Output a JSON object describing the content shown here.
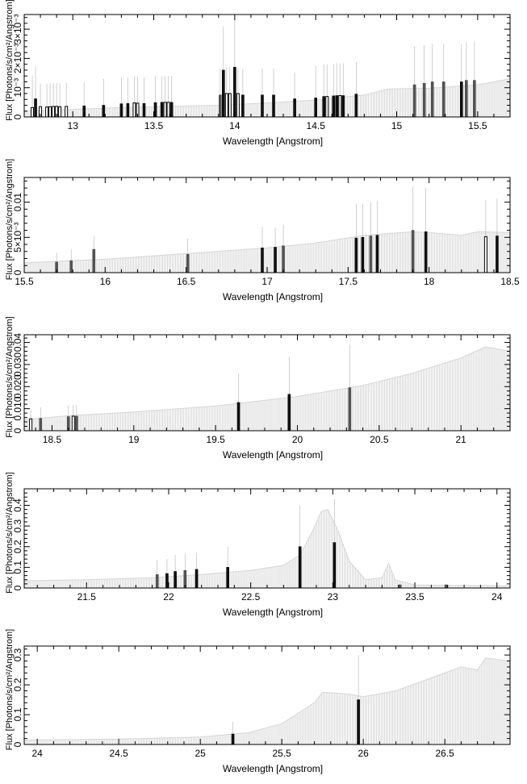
{
  "chart_data": [
    {
      "type": "bar",
      "xlabel": "Wavelength [Angstrom]",
      "ylabel": "Flux [Photons/s/cm²/Angstrom]",
      "xlim": [
        12.7,
        15.7
      ],
      "ylim": [
        0,
        0.0035
      ],
      "xticks": [
        13,
        13.5,
        14,
        14.5,
        15,
        15.5
      ],
      "xticklabels": [
        "13",
        "13.5",
        "14",
        "14.5",
        "15",
        "15.5"
      ],
      "yticks": [
        0,
        0.001,
        0.002,
        0.003
      ],
      "yticklabels": [
        "0",
        "10⁻³",
        "2×10⁻³",
        "3×10⁻³"
      ],
      "model_curve": {
        "x": [
          12.7,
          13.0,
          13.3,
          13.6,
          13.9,
          14.2,
          14.5,
          14.8,
          14.95,
          15.2,
          15.5,
          15.7
        ],
        "y": [
          0.0002,
          0.00026,
          0.00032,
          0.00036,
          0.0004,
          0.00048,
          0.00058,
          0.00075,
          0.00096,
          0.00098,
          0.0011,
          0.0013
        ]
      },
      "bins": [
        {
          "x": 12.75,
          "y": 0.00032,
          "err": 0.0011,
          "style": "open"
        },
        {
          "x": 12.77,
          "y": 0.00062,
          "err": 0.0011,
          "style": "black"
        },
        {
          "x": 12.8,
          "y": 0.00035,
          "err": 0.0008,
          "style": "open"
        },
        {
          "x": 12.84,
          "y": 0.00034,
          "err": 0.0008,
          "style": "open"
        },
        {
          "x": 12.86,
          "y": 0.00035,
          "err": 0.0008,
          "style": "open"
        },
        {
          "x": 12.88,
          "y": 0.00036,
          "err": 0.0008,
          "style": "open"
        },
        {
          "x": 12.9,
          "y": 0.00036,
          "err": 0.0008,
          "style": "open"
        },
        {
          "x": 12.92,
          "y": 0.00035,
          "err": 0.0008,
          "style": "open"
        },
        {
          "x": 12.96,
          "y": 0.00036,
          "err": 0.0008,
          "style": "open"
        },
        {
          "x": 13.07,
          "y": 0.00038,
          "err": 0.0008,
          "style": "black"
        },
        {
          "x": 13.19,
          "y": 0.0004,
          "err": 0.0009,
          "style": "black"
        },
        {
          "x": 13.3,
          "y": 0.00045,
          "err": 0.0009,
          "style": "black"
        },
        {
          "x": 13.34,
          "y": 0.00046,
          "err": 0.0009,
          "style": "black"
        },
        {
          "x": 13.38,
          "y": 0.00048,
          "err": 0.0009,
          "style": "open"
        },
        {
          "x": 13.4,
          "y": 0.00047,
          "err": 0.0009,
          "style": "open"
        },
        {
          "x": 13.44,
          "y": 0.00046,
          "err": 0.0009,
          "style": "black"
        },
        {
          "x": 13.51,
          "y": 0.00049,
          "err": 0.0009,
          "style": "black"
        },
        {
          "x": 13.55,
          "y": 0.0005,
          "err": 0.0009,
          "style": "black"
        },
        {
          "x": 13.57,
          "y": 0.0005,
          "err": 0.0009,
          "style": "open"
        },
        {
          "x": 13.59,
          "y": 0.0005,
          "err": 0.0009,
          "style": "open"
        },
        {
          "x": 13.61,
          "y": 0.0005,
          "err": 0.0009,
          "style": "black"
        },
        {
          "x": 13.91,
          "y": 0.00075,
          "err": 0.0009,
          "style": "grey"
        },
        {
          "x": 13.93,
          "y": 0.0016,
          "err": 0.0015,
          "style": "black"
        },
        {
          "x": 13.95,
          "y": 0.0008,
          "err": 0.0009,
          "style": "open"
        },
        {
          "x": 13.97,
          "y": 0.0008,
          "err": 0.0009,
          "style": "open"
        },
        {
          "x": 14.0,
          "y": 0.0017,
          "err": 0.0018,
          "style": "black"
        },
        {
          "x": 14.02,
          "y": 0.0008,
          "err": 0.0009,
          "style": "open"
        },
        {
          "x": 14.05,
          "y": 0.00075,
          "err": 0.0009,
          "style": "black"
        },
        {
          "x": 14.17,
          "y": 0.00075,
          "err": 0.0009,
          "style": "black"
        },
        {
          "x": 14.24,
          "y": 0.00075,
          "err": 0.0009,
          "style": "black"
        },
        {
          "x": 14.37,
          "y": 0.00062,
          "err": 0.0009,
          "style": "black"
        },
        {
          "x": 14.5,
          "y": 0.00065,
          "err": 0.0011,
          "style": "black"
        },
        {
          "x": 14.55,
          "y": 0.0007,
          "err": 0.0011,
          "style": "black"
        },
        {
          "x": 14.57,
          "y": 0.0007,
          "err": 0.0011,
          "style": "open"
        },
        {
          "x": 14.61,
          "y": 0.00072,
          "err": 0.0011,
          "style": "black"
        },
        {
          "x": 14.63,
          "y": 0.00073,
          "err": 0.0011,
          "style": "black"
        },
        {
          "x": 14.65,
          "y": 0.00073,
          "err": 0.0011,
          "style": "open"
        },
        {
          "x": 14.67,
          "y": 0.00073,
          "err": 0.0011,
          "style": "black"
        },
        {
          "x": 14.75,
          "y": 0.00078,
          "err": 0.0011,
          "style": "black"
        },
        {
          "x": 15.11,
          "y": 0.0011,
          "err": 0.0013,
          "style": "grey"
        },
        {
          "x": 15.17,
          "y": 0.00115,
          "err": 0.0013,
          "style": "grey"
        },
        {
          "x": 15.22,
          "y": 0.0012,
          "err": 0.0013,
          "style": "grey"
        },
        {
          "x": 15.29,
          "y": 0.0012,
          "err": 0.0013,
          "style": "grey"
        },
        {
          "x": 15.4,
          "y": 0.0012,
          "err": 0.0013,
          "style": "black"
        },
        {
          "x": 15.43,
          "y": 0.00125,
          "err": 0.0013,
          "style": "grey"
        },
        {
          "x": 15.48,
          "y": 0.00125,
          "err": 0.0013,
          "style": "grey"
        }
      ]
    },
    {
      "type": "bar",
      "xlabel": "Wavelength [Angstrom]",
      "ylabel": "Flux [Photons/s/cm²/Angstrom]",
      "xlim": [
        15.5,
        18.5
      ],
      "ylim": [
        0,
        0.0135
      ],
      "xticks": [
        15.5,
        16,
        16.5,
        17,
        17.5,
        18,
        18.5
      ],
      "xticklabels": [
        "15.5",
        "16",
        "16.5",
        "17",
        "17.5",
        "18",
        "18.5"
      ],
      "yticks": [
        0,
        0.005,
        0.01
      ],
      "yticklabels": [
        "0",
        "5×10⁻³",
        "0.01"
      ],
      "model_curve": {
        "x": [
          15.5,
          16.0,
          16.5,
          17.0,
          17.3,
          17.6,
          17.9,
          18.0,
          18.2,
          18.3,
          18.5
        ],
        "y": [
          0.0014,
          0.0019,
          0.0027,
          0.0035,
          0.0042,
          0.0053,
          0.0058,
          0.0057,
          0.0053,
          0.0058,
          0.0057
        ]
      },
      "bins": [
        {
          "x": 15.7,
          "y": 0.0015,
          "err": 0.0013,
          "style": "grey"
        },
        {
          "x": 15.79,
          "y": 0.0017,
          "err": 0.0016,
          "style": "grey"
        },
        {
          "x": 15.93,
          "y": 0.0033,
          "err": 0.0019,
          "style": "grey"
        },
        {
          "x": 16.51,
          "y": 0.0026,
          "err": 0.0022,
          "style": "grey"
        },
        {
          "x": 16.97,
          "y": 0.0035,
          "err": 0.003,
          "style": "black"
        },
        {
          "x": 17.05,
          "y": 0.0036,
          "err": 0.0028,
          "style": "black"
        },
        {
          "x": 17.1,
          "y": 0.0038,
          "err": 0.003,
          "style": "grey"
        },
        {
          "x": 17.55,
          "y": 0.0049,
          "err": 0.0048,
          "style": "black"
        },
        {
          "x": 17.59,
          "y": 0.005,
          "err": 0.0048,
          "style": "black"
        },
        {
          "x": 17.64,
          "y": 0.0052,
          "err": 0.0048,
          "style": "grey"
        },
        {
          "x": 17.68,
          "y": 0.0053,
          "err": 0.0048,
          "style": "black"
        },
        {
          "x": 17.9,
          "y": 0.006,
          "err": 0.0062,
          "style": "grey"
        },
        {
          "x": 17.98,
          "y": 0.0058,
          "err": 0.0062,
          "style": "black"
        },
        {
          "x": 18.35,
          "y": 0.0051,
          "err": 0.0052,
          "style": "open"
        },
        {
          "x": 18.42,
          "y": 0.0052,
          "err": 0.0053,
          "style": "black"
        }
      ]
    },
    {
      "type": "bar",
      "xlabel": "Wavelength [Angstrom]",
      "ylabel": "Flux [Photons/s/cm²/Angstrom]",
      "xlim": [
        18.33,
        21.3
      ],
      "ylim": [
        0,
        0.0435
      ],
      "xticks": [
        18.5,
        19,
        19.5,
        20,
        20.5,
        21
      ],
      "xticklabels": [
        "18.5",
        "19",
        "19.5",
        "20",
        "20.5",
        "21"
      ],
      "yticks": [
        0,
        0.01,
        0.02,
        0.03,
        0.04
      ],
      "yticklabels": [
        "0",
        "0.010",
        "0.020",
        "0.030",
        "0.04"
      ],
      "model_curve": {
        "x": [
          18.33,
          18.6,
          19.0,
          19.5,
          20.0,
          20.4,
          20.7,
          21.0,
          21.15,
          21.3
        ],
        "y": [
          0.005,
          0.0068,
          0.0085,
          0.0112,
          0.0155,
          0.0205,
          0.026,
          0.033,
          0.038,
          0.036
        ]
      },
      "bins": [
        {
          "x": 18.37,
          "y": 0.0054,
          "err": 0.004,
          "style": "open"
        },
        {
          "x": 18.43,
          "y": 0.0056,
          "err": 0.005,
          "style": "grey"
        },
        {
          "x": 18.6,
          "y": 0.0064,
          "err": 0.005,
          "style": "grey"
        },
        {
          "x": 18.63,
          "y": 0.0066,
          "err": 0.005,
          "style": "open"
        },
        {
          "x": 18.65,
          "y": 0.0066,
          "err": 0.005,
          "style": "grey"
        },
        {
          "x": 19.64,
          "y": 0.0128,
          "err": 0.013,
          "style": "black"
        },
        {
          "x": 19.95,
          "y": 0.0165,
          "err": 0.017,
          "style": "black"
        },
        {
          "x": 20.32,
          "y": 0.0195,
          "err": 0.0195,
          "style": "grey"
        }
      ]
    },
    {
      "type": "bar",
      "xlabel": "Wavelength [Angstrom]",
      "ylabel": "Flux [Photons/s/cm²/Angstrom]",
      "xlim": [
        21.12,
        24.08
      ],
      "ylim": [
        0,
        0.48
      ],
      "xticks": [
        21.5,
        22,
        22.5,
        23,
        23.5,
        24
      ],
      "xticklabels": [
        "21.5",
        "22",
        "22.5",
        "23",
        "23.5",
        "24"
      ],
      "yticks": [
        0,
        0.1,
        0.2,
        0.3,
        0.4
      ],
      "yticklabels": [
        "0",
        "0.1",
        "0.2",
        "0.3",
        "0.4"
      ],
      "model_curve": {
        "x": [
          21.12,
          21.5,
          21.9,
          22.2,
          22.5,
          22.7,
          22.8,
          22.88,
          22.93,
          22.97,
          23.03,
          23.1,
          23.2,
          23.3,
          23.34,
          23.38,
          23.5,
          24.08
        ],
        "y": [
          0.035,
          0.04,
          0.05,
          0.065,
          0.085,
          0.11,
          0.16,
          0.28,
          0.37,
          0.38,
          0.28,
          0.13,
          0.04,
          0.05,
          0.12,
          0.04,
          0.015,
          0.01
        ]
      },
      "bins": [
        {
          "x": 21.93,
          "y": 0.065,
          "err": 0.07,
          "style": "grey"
        },
        {
          "x": 21.99,
          "y": 0.07,
          "err": 0.07,
          "style": "black"
        },
        {
          "x": 22.04,
          "y": 0.08,
          "err": 0.08,
          "style": "black"
        },
        {
          "x": 22.1,
          "y": 0.085,
          "err": 0.08,
          "style": "grey"
        },
        {
          "x": 22.17,
          "y": 0.09,
          "err": 0.08,
          "style": "black"
        },
        {
          "x": 22.36,
          "y": 0.1,
          "err": 0.1,
          "style": "black"
        },
        {
          "x": 22.8,
          "y": 0.2,
          "err": 0.2,
          "style": "black"
        },
        {
          "x": 23.01,
          "y": 0.22,
          "err": 0.21,
          "style": "black"
        },
        {
          "x": 23.41,
          "y": 0.015,
          "err": 0.005,
          "style": "grey"
        },
        {
          "x": 23.69,
          "y": 0.015,
          "err": 0.005,
          "style": "grey"
        }
      ]
    },
    {
      "type": "bar",
      "xlabel": "Wavelength [Angstrom]",
      "ylabel": "Flux [Photons/s/cm²/Angstrom]",
      "xlim": [
        23.92,
        26.9
      ],
      "ylim": [
        0,
        0.33
      ],
      "xticks": [
        24,
        24.5,
        25,
        25.5,
        26,
        26.5
      ],
      "xticklabels": [
        "24",
        "24.5",
        "25",
        "25.5",
        "26",
        "26.5"
      ],
      "yticks": [
        0,
        0.1,
        0.2,
        0.3
      ],
      "yticklabels": [
        "0",
        "0.1",
        "0.2",
        "0.3"
      ],
      "model_curve": {
        "x": [
          23.92,
          24.5,
          25.0,
          25.3,
          25.5,
          25.7,
          25.75,
          25.9,
          26.0,
          26.2,
          26.3,
          26.45,
          26.6,
          26.7,
          26.75,
          26.9
        ],
        "y": [
          0.015,
          0.018,
          0.025,
          0.04,
          0.07,
          0.14,
          0.175,
          0.17,
          0.16,
          0.18,
          0.2,
          0.23,
          0.26,
          0.25,
          0.29,
          0.28
        ]
      },
      "bins": [
        {
          "x": 25.2,
          "y": 0.035,
          "err": 0.04,
          "style": "black"
        },
        {
          "x": 25.97,
          "y": 0.15,
          "err": 0.15,
          "style": "black"
        }
      ]
    }
  ]
}
